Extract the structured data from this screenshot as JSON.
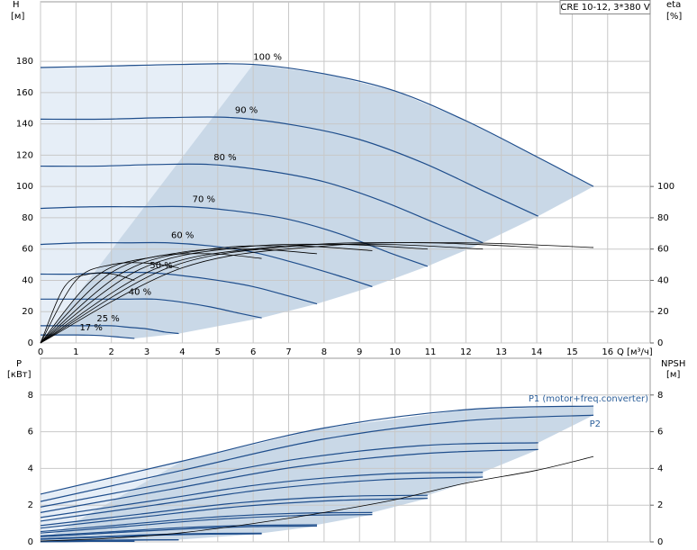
{
  "chart_data": [
    {
      "type": "line",
      "title": "CRE 10-12, 3*380 V",
      "ylabel": "H",
      "yunit": "[м]",
      "y2label": "eta",
      "y2unit": "[%]",
      "xlabel": "Q [м³/ч]",
      "xlim": [
        0,
        17.2
      ],
      "xticks": [
        0,
        1,
        2,
        3,
        4,
        5,
        6,
        7,
        8,
        9,
        10,
        11,
        12,
        13,
        14,
        15,
        16
      ],
      "xtick_labels": true,
      "ylim": [
        0,
        218
      ],
      "yticks": [
        0,
        20,
        40,
        60,
        80,
        100,
        120,
        140,
        160,
        180
      ],
      "y2lim": [
        0,
        218
      ],
      "y2ticks": [
        0,
        20,
        40,
        60,
        80,
        100
      ],
      "grid": true,
      "shade": true,
      "series": [
        {
          "name": "100 %",
          "color": "#1f4e8c",
          "x": [
            0,
            2,
            4,
            6,
            8,
            10,
            12,
            14,
            15.6
          ],
          "values": [
            176,
            177,
            178,
            178,
            172,
            161,
            142,
            119,
            100
          ]
        },
        {
          "name": "90 %",
          "color": "#1f4e8c",
          "x": [
            0,
            1.8,
            3.6,
            5.4,
            7.2,
            9,
            10.8,
            12.6,
            14.04
          ],
          "values": [
            143,
            143,
            144,
            144,
            139,
            130,
            115,
            96,
            81
          ]
        },
        {
          "name": "80 %",
          "color": "#1f4e8c",
          "x": [
            0,
            1.6,
            3.2,
            4.8,
            6.4,
            8,
            9.6,
            11.2,
            12.48
          ],
          "values": [
            113,
            113,
            114,
            114,
            110,
            103,
            91,
            76,
            64
          ]
        },
        {
          "name": "70 %",
          "color": "#1f4e8c",
          "x": [
            0,
            1.4,
            2.8,
            4.2,
            5.6,
            7,
            8.4,
            9.8,
            10.92
          ],
          "values": [
            86,
            87,
            87,
            87,
            84,
            79,
            70,
            58,
            49
          ]
        },
        {
          "name": "60 %",
          "color": "#1f4e8c",
          "x": [
            0,
            1.2,
            2.4,
            3.6,
            4.8,
            6,
            7.2,
            8.4,
            9.36
          ],
          "values": [
            63,
            64,
            64,
            64,
            62,
            58,
            51,
            43,
            36
          ]
        },
        {
          "name": "50 %",
          "color": "#1f4e8c",
          "x": [
            0,
            1,
            2,
            3,
            4,
            5,
            6,
            7,
            7.8
          ],
          "values": [
            44,
            44,
            45,
            45,
            43,
            40,
            36,
            30,
            25
          ]
        },
        {
          "name": "40 %",
          "color": "#1f4e8c",
          "x": [
            0,
            0.8,
            1.6,
            2.4,
            3.2,
            4,
            4.8,
            5.6,
            6.24
          ],
          "values": [
            28,
            28,
            28,
            28,
            28,
            26,
            23,
            19,
            16
          ]
        },
        {
          "name": "25 %",
          "color": "#1f4e8c",
          "x": [
            0,
            0.5,
            1,
            1.5,
            2,
            2.5,
            3,
            3.5,
            3.9
          ],
          "values": [
            11,
            11,
            11,
            11,
            11,
            10,
            9,
            7,
            6
          ]
        },
        {
          "name": "17 %",
          "color": "#1f4e8c",
          "x": [
            0,
            0.34,
            0.68,
            1.02,
            1.36,
            1.7,
            2.04,
            2.38,
            2.65
          ],
          "values": [
            5.1,
            5.1,
            5.1,
            5.1,
            5,
            4.7,
            4.1,
            3.4,
            2.9
          ]
        },
        {
          "axis": "y2",
          "color": "#000000",
          "x": [
            0,
            4,
            8,
            12,
            15.6
          ],
          "values": [
            0,
            48,
            62,
            64,
            61
          ]
        },
        {
          "axis": "y2",
          "color": "#000000",
          "x": [
            0,
            3.6,
            7.2,
            10.8,
            14.04
          ],
          "values": [
            0,
            48,
            62,
            64,
            61
          ]
        },
        {
          "axis": "y2",
          "color": "#000000",
          "x": [
            0,
            3.2,
            6.4,
            9.6,
            12.48
          ],
          "values": [
            0,
            47,
            61,
            63,
            60
          ]
        },
        {
          "axis": "y2",
          "color": "#000000",
          "x": [
            0,
            2.8,
            5.6,
            8.4,
            10.92
          ],
          "values": [
            0,
            47,
            61,
            63,
            60
          ]
        },
        {
          "axis": "y2",
          "color": "#000000",
          "x": [
            0,
            2.4,
            4.8,
            7.2,
            9.36
          ],
          "values": [
            0,
            46,
            60,
            62,
            59
          ]
        },
        {
          "axis": "y2",
          "color": "#000000",
          "x": [
            0,
            2,
            4,
            6,
            7.8
          ],
          "values": [
            0,
            45,
            58,
            60,
            57
          ]
        },
        {
          "axis": "y2",
          "color": "#000000",
          "x": [
            0,
            1.6,
            3.2,
            4.8,
            6.24
          ],
          "values": [
            0,
            43,
            55,
            57,
            54
          ]
        },
        {
          "axis": "y2",
          "color": "#000000",
          "x": [
            0,
            1,
            2,
            3,
            3.9
          ],
          "values": [
            0,
            40,
            50,
            51,
            48
          ]
        },
        {
          "axis": "y2",
          "color": "#000000",
          "x": [
            0,
            0.68,
            1.36,
            2.04,
            2.65
          ],
          "values": [
            0,
            36,
            44,
            44,
            40
          ]
        }
      ]
    },
    {
      "type": "line",
      "ylabel": "P",
      "yunit": "[кВт]",
      "y2label": "NPSH",
      "y2unit": "[м]",
      "xlim": [
        0,
        17.2
      ],
      "xticks": [
        0,
        1,
        2,
        3,
        4,
        5,
        6,
        7,
        8,
        9,
        10,
        11,
        12,
        13,
        14,
        15,
        16
      ],
      "xtick_labels": false,
      "ylim": [
        0,
        10
      ],
      "yticks": [
        0,
        2,
        4,
        6,
        8
      ],
      "y2lim": [
        0,
        10
      ],
      "y2ticks": [
        0,
        2,
        4,
        6,
        8
      ],
      "grid": true,
      "shade": true,
      "series": [
        {
          "name": "P1 (motor+freq.converter)",
          "color": "#1f4e8c",
          "x": [
            0,
            4,
            8,
            12,
            15.6
          ],
          "values": [
            2.6,
            4.4,
            6.2,
            7.2,
            7.4
          ]
        },
        {
          "name": "P2",
          "color": "#1f4e8c",
          "x": [
            0,
            4,
            8,
            12,
            15.6
          ],
          "values": [
            2.2,
            3.9,
            5.6,
            6.6,
            6.9
          ]
        },
        {
          "color": "#1f4e8c",
          "x": [
            0,
            3.6,
            7.2,
            10.8,
            14.04
          ],
          "values": [
            1.9,
            3.2,
            4.5,
            5.25,
            5.4
          ]
        },
        {
          "color": "#1f4e8c",
          "x": [
            0,
            3.6,
            7.2,
            10.8,
            14.04
          ],
          "values": [
            1.6,
            2.84,
            4.08,
            4.81,
            5.03
          ]
        },
        {
          "color": "#1f4e8c",
          "x": [
            0,
            3.2,
            6.4,
            9.6,
            12.48
          ],
          "values": [
            1.33,
            2.25,
            3.17,
            3.69,
            3.79
          ]
        },
        {
          "color": "#1f4e8c",
          "x": [
            0,
            3.2,
            6.4,
            9.6,
            12.48
          ],
          "values": [
            1.13,
            2.0,
            2.87,
            3.38,
            3.53
          ]
        },
        {
          "color": "#1f4e8c",
          "x": [
            0,
            2.8,
            5.6,
            8.4,
            10.92
          ],
          "values": [
            0.89,
            1.51,
            2.13,
            2.47,
            2.54
          ]
        },
        {
          "color": "#1f4e8c",
          "x": [
            0,
            2.8,
            5.6,
            8.4,
            10.92
          ],
          "values": [
            0.75,
            1.34,
            1.92,
            2.26,
            2.37
          ]
        },
        {
          "color": "#1f4e8c",
          "x": [
            0,
            2.4,
            4.8,
            7.2,
            9.36
          ],
          "values": [
            0.56,
            0.95,
            1.34,
            1.56,
            1.6
          ]
        },
        {
          "color": "#1f4e8c",
          "x": [
            0,
            2.4,
            4.8,
            7.2,
            9.36
          ],
          "values": [
            0.48,
            0.84,
            1.21,
            1.43,
            1.49
          ]
        },
        {
          "color": "#1f4e8c",
          "x": [
            0,
            2,
            4,
            6,
            7.8
          ],
          "values": [
            0.33,
            0.55,
            0.78,
            0.9,
            0.93
          ]
        },
        {
          "color": "#1f4e8c",
          "x": [
            0,
            2,
            4,
            6,
            7.8
          ],
          "values": [
            0.28,
            0.49,
            0.7,
            0.83,
            0.86
          ]
        },
        {
          "color": "#1f4e8c",
          "x": [
            0,
            1.6,
            3.2,
            4.8,
            6.24
          ],
          "values": [
            0.17,
            0.28,
            0.4,
            0.46,
            0.47
          ]
        },
        {
          "color": "#1f4e8c",
          "x": [
            0,
            1.6,
            3.2,
            4.8,
            6.24
          ],
          "values": [
            0.14,
            0.25,
            0.36,
            0.42,
            0.44
          ]
        },
        {
          "color": "#1f4e8c",
          "x": [
            0,
            1,
            2,
            3,
            3.9
          ],
          "values": [
            0.04,
            0.07,
            0.1,
            0.11,
            0.12
          ]
        },
        {
          "color": "#1f4e8c",
          "x": [
            0,
            1,
            2,
            3,
            3.9
          ],
          "values": [
            0.03,
            0.06,
            0.09,
            0.1,
            0.11
          ]
        },
        {
          "color": "#1f4e8c",
          "x": [
            0,
            0.68,
            1.36,
            2.04,
            2.65
          ],
          "values": [
            0.01,
            0.02,
            0.03,
            0.04,
            0.04
          ]
        },
        {
          "color": "#1f4e8c",
          "x": [
            0,
            0.68,
            1.36,
            2.04,
            2.65
          ],
          "values": [
            0.01,
            0.02,
            0.03,
            0.03,
            0.03
          ]
        },
        {
          "axis": "y2",
          "color": "#000000",
          "x": [
            0,
            2,
            4,
            6,
            8,
            10,
            12,
            14,
            15.6
          ],
          "values": [
            0.05,
            0.2,
            0.5,
            1.0,
            1.6,
            2.3,
            3.2,
            3.9,
            4.65
          ]
        }
      ]
    }
  ]
}
